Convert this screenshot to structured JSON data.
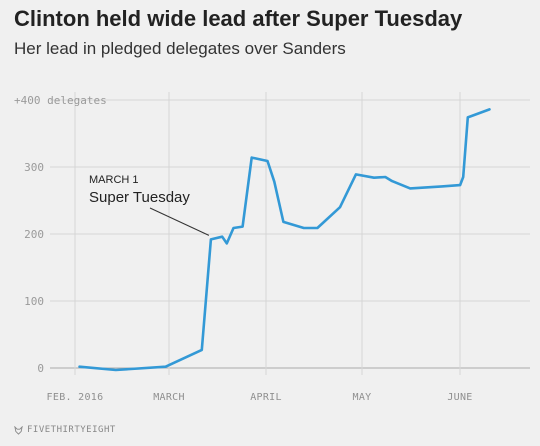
{
  "chart_data": {
    "type": "line",
    "title": "Clinton held wide lead after Super Tuesday",
    "subtitle": "Her lead in pledged delegates over Sanders",
    "ylim": [
      0,
      400
    ],
    "y_ticks": [
      0,
      100,
      200,
      300
    ],
    "y_top_label": "+400 delegates",
    "x_ticks": [
      "FEB. 2016",
      "MARCH",
      "APRIL",
      "MAY",
      "JUNE"
    ],
    "grid": true,
    "series": [
      {
        "color": "#3399d6",
        "points": [
          [
            1,
            2
          ],
          [
            9,
            -3
          ],
          [
            20,
            2
          ],
          [
            28,
            27
          ],
          [
            30,
            192
          ],
          [
            32.5,
            196
          ],
          [
            33.5,
            186
          ],
          [
            35,
            209
          ],
          [
            37,
            211
          ],
          [
            39,
            314
          ],
          [
            42.5,
            309
          ],
          [
            44,
            278
          ],
          [
            46,
            218
          ],
          [
            50.5,
            209
          ],
          [
            53.5,
            209
          ],
          [
            58.5,
            240
          ],
          [
            62,
            289
          ],
          [
            66,
            284
          ],
          [
            68.5,
            285
          ],
          [
            70,
            279
          ],
          [
            74,
            268
          ],
          [
            81,
            271
          ],
          [
            85,
            273
          ],
          [
            85.7,
            285
          ],
          [
            86.7,
            374
          ],
          [
            91.5,
            386
          ]
        ]
      }
    ],
    "annotation": {
      "label_small": "MARCH 1",
      "label_big": "Super Tuesday",
      "x": 30,
      "y": 192
    }
  },
  "footer": {
    "brand": "FIVETHIRTYEIGHT",
    "logo_icon": "fox-icon"
  }
}
